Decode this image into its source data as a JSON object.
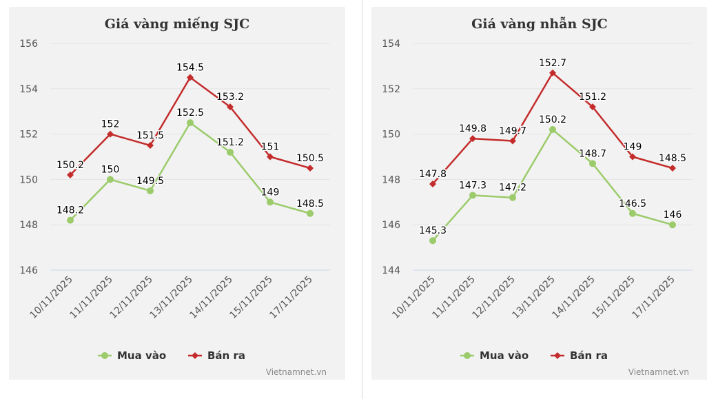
{
  "chart_data": [
    {
      "type": "line",
      "title": "Giá vàng miếng SJC",
      "categories": [
        "10/11/2025",
        "11/11/2025",
        "12/11/2025",
        "13/11/2025",
        "14/11/2025",
        "15/11/2025",
        "17/11/2025"
      ],
      "series": [
        {
          "name": "Mua vào",
          "color": "#9bcb6a",
          "marker": "circle",
          "values": [
            148.2,
            150,
            149.5,
            152.5,
            151.2,
            149,
            148.5
          ]
        },
        {
          "name": "Bán ra",
          "color": "#c42b2b",
          "marker": "diamond",
          "values": [
            150.2,
            152,
            151.5,
            154.5,
            153.2,
            151,
            150.5
          ]
        }
      ],
      "ylim": [
        146,
        156
      ],
      "yticks": [
        146,
        148,
        150,
        152,
        154,
        156
      ],
      "grid": true,
      "legend": "bottom-center",
      "credit": "Vietnamnet.vn"
    },
    {
      "type": "line",
      "title": "Giá vàng nhẫn SJC",
      "categories": [
        "10/11/2025",
        "11/11/2025",
        "12/11/2025",
        "13/11/2025",
        "14/11/2025",
        "15/11/2025",
        "17/11/2025"
      ],
      "series": [
        {
          "name": "Mua vào",
          "color": "#9bcb6a",
          "marker": "circle",
          "values": [
            145.3,
            147.3,
            147.2,
            150.2,
            148.7,
            146.5,
            146
          ]
        },
        {
          "name": "Bán ra",
          "color": "#c42b2b",
          "marker": "diamond",
          "values": [
            147.8,
            149.8,
            149.7,
            152.7,
            151.2,
            149,
            148.5
          ]
        }
      ],
      "ylim": [
        144,
        154
      ],
      "yticks": [
        144,
        146,
        148,
        150,
        152,
        154
      ],
      "grid": true,
      "legend": "bottom-center",
      "credit": "Vietnamnet.vn"
    }
  ]
}
